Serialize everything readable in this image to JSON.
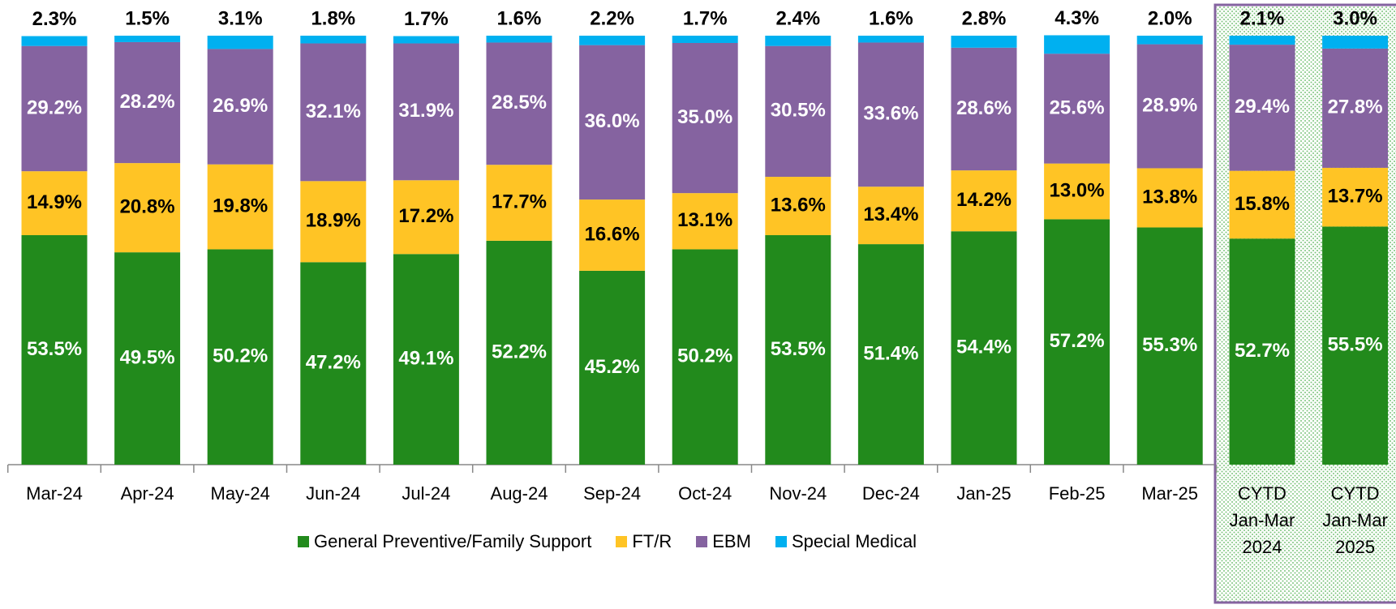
{
  "chart_data": {
    "type": "stacked_bar",
    "categories": [
      "Mar-24",
      "Apr-24",
      "May-24",
      "Jun-24",
      "Jul-24",
      "Aug-24",
      "Sep-24",
      "Oct-24",
      "Nov-24",
      "Dec-24",
      "Jan-25",
      "Feb-25",
      "Mar-25",
      "CYTD Jan-Mar 2024",
      "CYTD Jan-Mar 2025"
    ],
    "ylim": [
      0,
      100
    ],
    "series": [
      {
        "name": "General Preventive/Family Support",
        "color": "#228a1c",
        "label_color": "#ffffff",
        "values": [
          53.5,
          49.5,
          50.2,
          47.2,
          49.1,
          52.2,
          45.2,
          50.2,
          53.5,
          51.4,
          54.4,
          57.2,
          55.3,
          52.7,
          55.5
        ],
        "value_labels": [
          "53.5%",
          "49.5%",
          "50.2%",
          "47.2%",
          "49.1%",
          "52.2%",
          "45.2%",
          "50.2%",
          "53.5%",
          "51.4%",
          "54.4%",
          "57.2%",
          "55.3%",
          "52.7%",
          "55.5%"
        ]
      },
      {
        "name": "FT/R",
        "color": "#ffc425",
        "label_color": "#000000",
        "values": [
          14.9,
          20.8,
          19.8,
          18.9,
          17.2,
          17.7,
          16.6,
          13.1,
          13.6,
          13.4,
          14.2,
          13.0,
          13.8,
          15.8,
          13.7
        ],
        "value_labels": [
          "14.9%",
          "20.8%",
          "19.8%",
          "18.9%",
          "17.2%",
          "17.7%",
          "16.6%",
          "13.1%",
          "13.6%",
          "13.4%",
          "14.2%",
          "13.0%",
          "13.8%",
          "15.8%",
          "13.7%"
        ]
      },
      {
        "name": "EBM",
        "color": "#8563a0",
        "label_color": "#ffffff",
        "values": [
          29.2,
          28.2,
          26.9,
          32.1,
          31.9,
          28.5,
          36.0,
          35.0,
          30.5,
          33.6,
          28.6,
          25.6,
          28.9,
          29.4,
          27.8
        ],
        "value_labels": [
          "29.2%",
          "28.2%",
          "26.9%",
          "32.1%",
          "31.9%",
          "28.5%",
          "36.0%",
          "35.0%",
          "30.5%",
          "33.6%",
          "28.6%",
          "25.6%",
          "28.9%",
          "29.4%",
          "27.8%"
        ]
      },
      {
        "name": "Special Medical",
        "color": "#00b0f0",
        "label_color": "#000000",
        "values": [
          2.3,
          1.5,
          3.1,
          1.8,
          1.7,
          1.6,
          2.2,
          1.7,
          2.4,
          1.6,
          2.8,
          4.3,
          2.0,
          2.1,
          3.0
        ],
        "value_labels": [
          "2.3%",
          "1.5%",
          "3.1%",
          "1.8%",
          "1.7%",
          "1.6%",
          "2.2%",
          "1.7%",
          "2.4%",
          "1.6%",
          "2.8%",
          "4.3%",
          "2.0%",
          "2.1%",
          "3.0%"
        ]
      }
    ]
  }
}
